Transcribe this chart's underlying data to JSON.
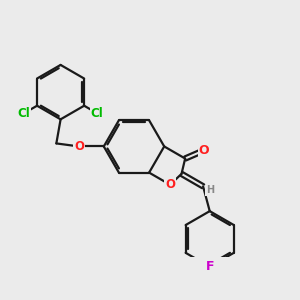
{
  "bg_color": "#ebebeb",
  "bond_color": "#1a1a1a",
  "bond_width": 1.6,
  "dbo": 0.06,
  "atom_colors": {
    "O": "#ff2020",
    "Cl": "#00bb00",
    "F": "#cc00cc",
    "H": "#888888"
  },
  "fs": 8.5
}
